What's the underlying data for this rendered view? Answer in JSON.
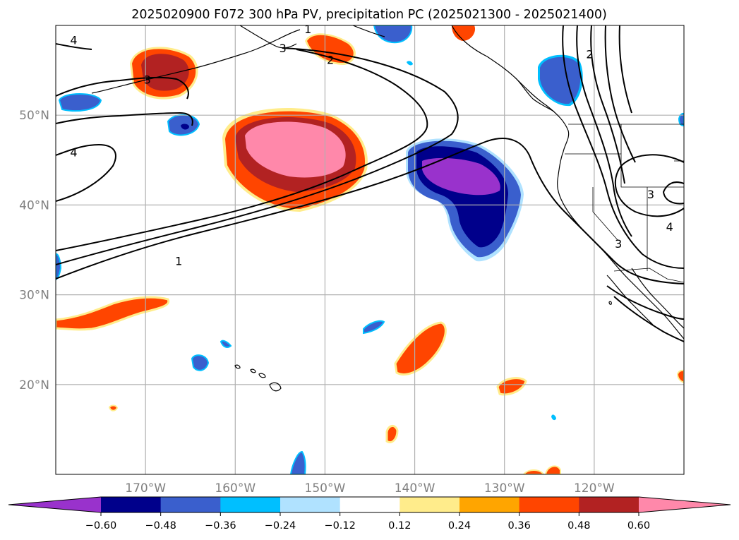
{
  "chart_data": {
    "type": "map-contour",
    "title": "2025020900 F072 300 hPa PV, precipitation PC (2025021300 - 2025021400)",
    "lon_range": [
      -180,
      -110
    ],
    "lat_range": [
      10,
      60
    ],
    "grid": true,
    "lat_labels": [
      {
        "lat": 50,
        "label": "50°N"
      },
      {
        "lat": 40,
        "label": "40°N"
      },
      {
        "lat": 30,
        "label": "30°N"
      },
      {
        "lat": 20,
        "label": "20°N"
      }
    ],
    "lon_labels": [
      {
        "lon": -170,
        "label": "170°W"
      },
      {
        "lon": -160,
        "label": "160°W"
      },
      {
        "lon": -150,
        "label": "150°W"
      },
      {
        "lon": -140,
        "label": "140°W"
      },
      {
        "lon": -130,
        "label": "130°W"
      },
      {
        "lon": -120,
        "label": "120°W"
      }
    ],
    "colorbar": {
      "orientation": "horizontal",
      "extend": "both",
      "colors": [
        "#9932cc",
        "#00008b",
        "#3a5fcd",
        "#00bfff",
        "#b0e2ff",
        "#ffffff",
        "#ffec8b",
        "#ffa500",
        "#ff4500",
        "#b22222",
        "#ff88aa"
      ],
      "tick_labels": [
        "−0.60",
        "−0.48",
        "−0.36",
        "−0.24",
        "−0.12",
        "0.12",
        "0.24",
        "0.36",
        "0.48",
        "0.60"
      ]
    },
    "pv_contour_labels": [
      {
        "text": "4",
        "lon": -178,
        "lat": 58.4
      },
      {
        "text": "3",
        "lon": -169.8,
        "lat": 54
      },
      {
        "text": "1",
        "lon": -151.9,
        "lat": 59.6
      },
      {
        "text": "3",
        "lon": -154.7,
        "lat": 57.5
      },
      {
        "text": "2",
        "lon": -149.4,
        "lat": 56.2
      },
      {
        "text": "2",
        "lon": -120.5,
        "lat": 56.8
      },
      {
        "text": "4",
        "lon": -178,
        "lat": 45.9
      },
      {
        "text": "1",
        "lon": -166.3,
        "lat": 33.8
      },
      {
        "text": "3",
        "lon": -113.7,
        "lat": 41.2
      },
      {
        "text": "4",
        "lon": -111.6,
        "lat": 37.6
      },
      {
        "text": "3",
        "lon": -117.3,
        "lat": 35.7
      }
    ],
    "precip_pc_regions": [
      {
        "name": "north-pacific-positive",
        "center_lon": -155,
        "center_lat": 45.5,
        "max": ">0.60"
      },
      {
        "name": "bering-positive",
        "center_lon": -169,
        "center_lat": 55,
        "max": "0.48–0.60"
      },
      {
        "name": "gulf-of-alaska-positive",
        "center_lon": -151,
        "center_lat": 58,
        "max": "0.36–0.48"
      },
      {
        "name": "northeast-pacific-negative",
        "center_lon": -133.5,
        "center_lat": 41.5,
        "min": "<−0.60"
      },
      {
        "name": "bc-coast-negative",
        "center_lon": -123,
        "center_lat": 55.5,
        "min": "−0.48–−0.36"
      },
      {
        "name": "aleutian-negative-small",
        "center_lon": -175,
        "center_lat": 51.5,
        "min": "−0.48–−0.36"
      },
      {
        "name": "central-negative-small",
        "center_lon": -166,
        "center_lat": 48.2,
        "min": "<−0.48"
      },
      {
        "name": "subtropical-band-positive",
        "center_lon": -173,
        "center_lat": 28,
        "max": "0.36–0.48"
      },
      {
        "name": "subtropical-positive",
        "center_lon": -138,
        "center_lat": 23,
        "max": "0.36–0.48"
      },
      {
        "name": "subtropical-small-positive",
        "center_lon": -128.6,
        "center_lat": 19.9,
        "max": "0.36–0.48"
      },
      {
        "name": "south-small-positive",
        "center_lon": -146,
        "center_lat": 14.5,
        "max": "0.36–0.48"
      }
    ]
  }
}
